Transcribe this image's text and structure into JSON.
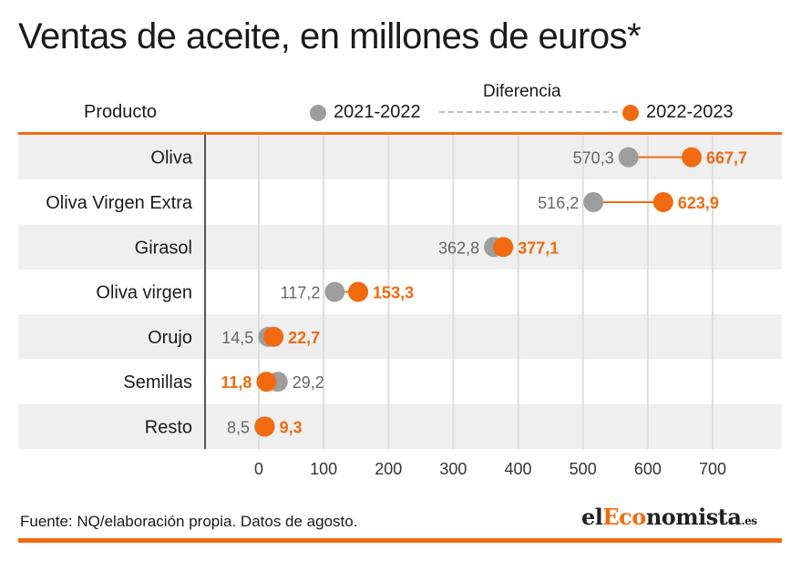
{
  "title": "Ventas de aceite, en millones de euros*",
  "header": {
    "product_label": "Producto",
    "difference_label": "Diferencia"
  },
  "legend": {
    "series_a": "2021-2022",
    "series_b": "2022-2023"
  },
  "colors": {
    "series_a": "#9e9e9e",
    "series_b": "#f26a10",
    "band": "#efefef",
    "grid": "#dedede"
  },
  "chart_data": {
    "type": "dot",
    "title": "Ventas de aceite, en millones de euros*",
    "categories": [
      "Oliva",
      "Oliva Virgen Extra",
      "Girasol",
      "Oliva virgen",
      "Orujo",
      "Semillas",
      "Resto"
    ],
    "series": [
      {
        "name": "2021-2022",
        "values": [
          570.3,
          516.2,
          362.8,
          117.2,
          14.5,
          29.2,
          8.5
        ],
        "labels": [
          "570,3",
          "516,2",
          "362,8",
          "117,2",
          "14,5",
          "29,2",
          "8,5"
        ]
      },
      {
        "name": "2022-2023",
        "values": [
          667.7,
          623.9,
          377.1,
          153.3,
          22.7,
          11.8,
          9.3
        ],
        "labels": [
          "667,7",
          "623,9",
          "377,1",
          "153,3",
          "22,7",
          "11,8",
          "9,3"
        ]
      }
    ],
    "xlim": [
      0,
      700
    ],
    "xticks": [
      0,
      100,
      200,
      300,
      400,
      500,
      600,
      700
    ],
    "xtick_labels": [
      "0",
      "100",
      "200",
      "300",
      "400",
      "500",
      "600",
      "700"
    ],
    "grid": true,
    "legend_position": "top-right"
  },
  "footer": {
    "source": "Fuente: NQ/elaboración propia. Datos de agosto.",
    "logo_el": "el",
    "logo_accent": "Eco",
    "logo_rest": "nomista",
    "logo_tld": ".es"
  }
}
